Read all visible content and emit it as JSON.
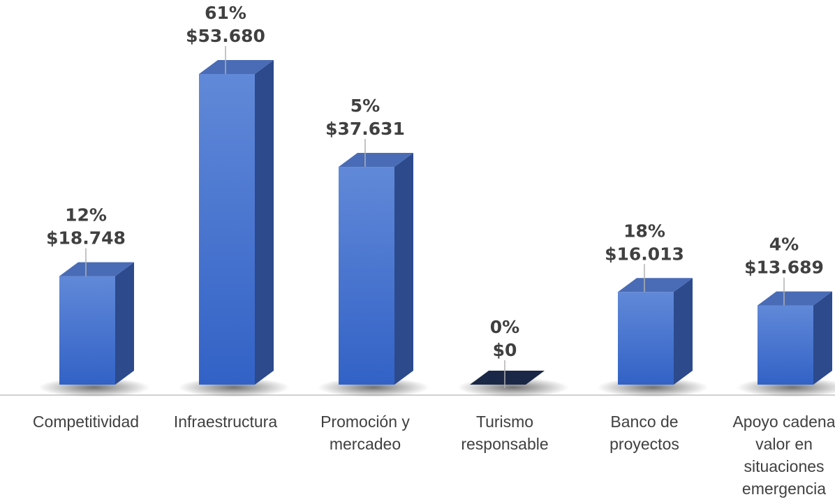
{
  "chart_data": {
    "type": "bar3d",
    "categories": [
      "Competitividad",
      "Infraestructura",
      "Promoción y mercadeo",
      "Turismo responsable",
      "Banco de proyectos",
      "Apoyo cadena valor en situaciones emergencia"
    ],
    "values": [
      18748,
      53680,
      37631,
      0,
      16013,
      13689
    ],
    "value_labels": [
      "$18.748",
      "$53.680",
      "$37.631",
      "$0",
      "$16.013",
      "$13.689"
    ],
    "shares": [
      12,
      61,
      5,
      0,
      18,
      4
    ],
    "share_labels": [
      "12%",
      "61%",
      "5%",
      "0%",
      "18%",
      "4%"
    ],
    "color": "#3f6fcc"
  }
}
